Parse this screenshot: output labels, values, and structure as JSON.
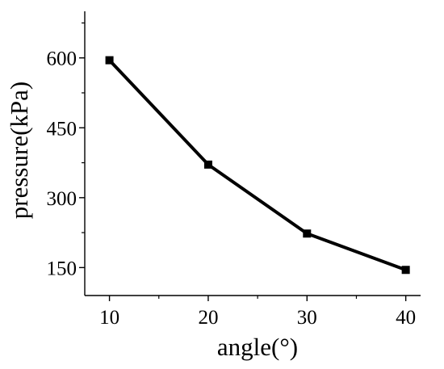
{
  "chart_data": {
    "type": "line",
    "xlabel": "angle(°)",
    "ylabel": "pressure(kPa)",
    "x": [
      10,
      20,
      30,
      40
    ],
    "series": [
      {
        "values": [
          595,
          371,
          223,
          145
        ]
      }
    ],
    "xlim": [
      7.5,
      41.5
    ],
    "ylim": [
      90,
      700
    ],
    "xticks": [
      10,
      20,
      30,
      40
    ],
    "yticks": [
      150,
      300,
      450,
      600
    ],
    "x_minor_ticks": [
      15,
      25,
      35
    ],
    "y_minor_ticks": [
      225,
      375,
      525,
      675
    ],
    "grid": false,
    "legend": "none",
    "marker": "square",
    "line_color": "#000000"
  }
}
